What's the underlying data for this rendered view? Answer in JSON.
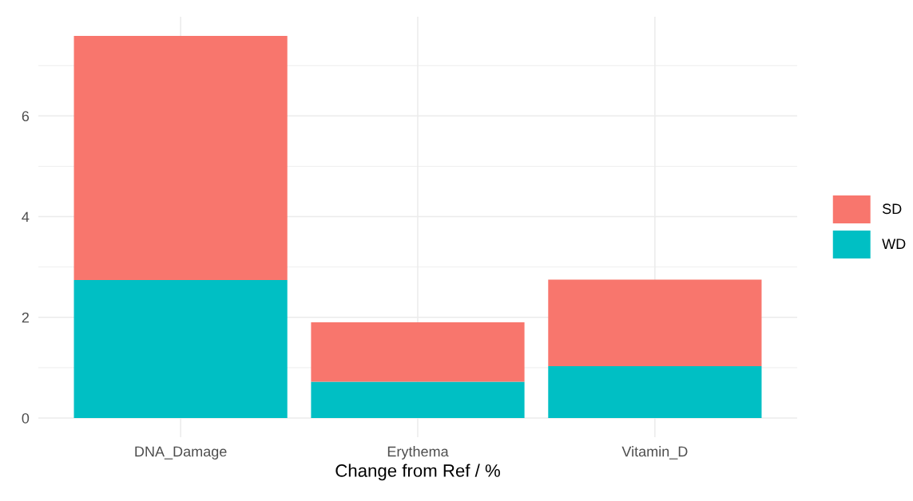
{
  "chart_data": {
    "type": "bar",
    "stacked": true,
    "xlabel": "Change from Ref / %",
    "categories": [
      "DNA_Damage",
      "Erythema",
      "Vitamin_D"
    ],
    "series": [
      {
        "name": "WD",
        "color": "#00bfc4",
        "values": [
          2.74,
          0.72,
          1.03
        ]
      },
      {
        "name": "SD",
        "color": "#f8766d",
        "values": [
          4.85,
          1.18,
          1.72
        ]
      }
    ],
    "ylim": [
      -0.38,
      7.97
    ],
    "yticks": [
      0,
      2,
      4,
      6
    ],
    "grid": true,
    "legend": "right"
  }
}
